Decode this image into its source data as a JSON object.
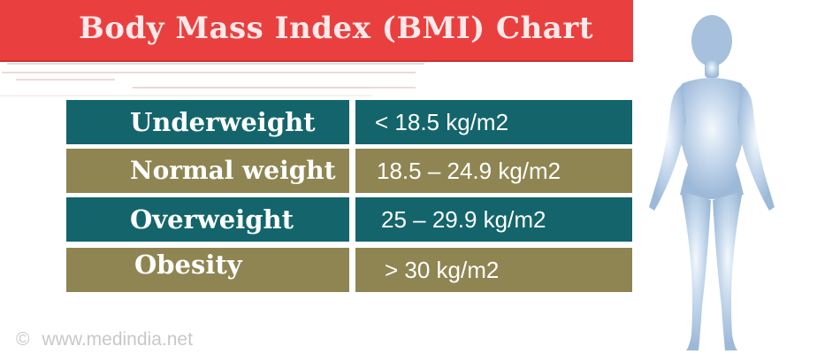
{
  "title": "Body Mass Index (BMI) Chart",
  "colors": {
    "title_bg": "#e9403f",
    "title_text": "#ffe9ea",
    "row_teal": "#13656b",
    "row_olive": "#8f8552",
    "silhouette": "#a9c3df"
  },
  "categories": [
    {
      "label": "Underweight",
      "range": "< 18.5 kg/m2"
    },
    {
      "label": "Normal weight",
      "range": "18.5 – 24.9 kg/m2"
    },
    {
      "label": "Overweight",
      "range": "25 – 29.9 kg/m2"
    },
    {
      "label": "Obesity",
      "range": "> 30 kg/m2"
    }
  ],
  "watermark": {
    "symbol": "©",
    "text": "www.medindia.net"
  },
  "icons": {
    "figure": "female-silhouette-icon"
  }
}
